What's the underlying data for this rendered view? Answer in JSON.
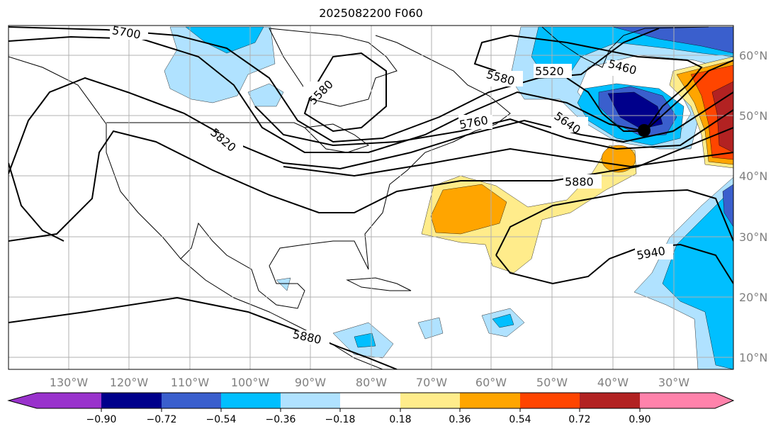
{
  "title": "2025082200 F060",
  "map": {
    "lon_labels": [
      "130°W",
      "120°W",
      "110°W",
      "100°W",
      "90°W",
      "80°W",
      "70°W",
      "60°W",
      "50°W",
      "40°W",
      "30°W"
    ],
    "lat_labels": [
      "60°N",
      "50°N",
      "40°N",
      "30°N",
      "20°N",
      "10°N"
    ],
    "contour_labels": [
      "5700",
      "5580",
      "5820",
      "5580",
      "5520",
      "5460",
      "5640",
      "5760",
      "5880",
      "5940",
      "5880"
    ],
    "low_marker": "low-center"
  },
  "colorbar": {
    "ticks": [
      "−0.90",
      "−0.72",
      "−0.54",
      "−0.36",
      "−0.18",
      "0.18",
      "0.36",
      "0.54",
      "0.72",
      "0.90"
    ],
    "colors": [
      "#9932CC",
      "#00008B",
      "#3A5FCD",
      "#00BFFF",
      "#B0E2FF",
      "#FFFFFF",
      "#FFEC8B",
      "#FFA500",
      "#FF4500",
      "#B22222",
      "#FF82AB"
    ]
  }
}
